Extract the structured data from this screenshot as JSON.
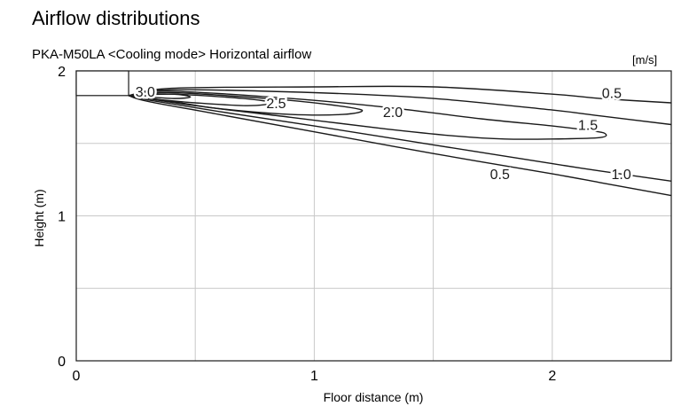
{
  "chart_data": {
    "type": "contour",
    "title": "Airflow distributions",
    "subtitle": "PKA-M50LA <Cooling mode> Horizontal airflow",
    "unit": "[m/s]",
    "xlabel": "Floor distance (m)",
    "ylabel": "Height (m)",
    "xlim": [
      0,
      2.5
    ],
    "ylim": [
      0,
      2
    ],
    "x_ticks": [
      "0",
      "1",
      "2"
    ],
    "y_ticks": [
      "0",
      "1",
      "2"
    ],
    "grid": true,
    "unit_box": {
      "x": [
        0,
        0.22
      ],
      "y": [
        1.83,
        2.0
      ]
    },
    "contours": [
      {
        "level": "0.5",
        "label": "0.5",
        "points": [
          [
            0.22,
            1.83
          ],
          [
            0.4,
            1.88
          ],
          [
            1.0,
            1.89
          ],
          [
            1.5,
            1.89
          ],
          [
            2.0,
            1.84
          ],
          [
            2.2,
            1.81
          ],
          [
            2.5,
            1.78
          ]
        ]
      },
      {
        "level": "0.5",
        "label": "0.5",
        "points": [
          [
            0.22,
            1.83
          ],
          [
            0.3,
            1.79
          ],
          [
            0.6,
            1.7
          ],
          [
            1.0,
            1.58
          ],
          [
            1.5,
            1.43
          ],
          [
            2.0,
            1.29
          ],
          [
            2.2,
            1.23
          ],
          [
            2.5,
            1.14
          ]
        ]
      },
      {
        "level": "1.0",
        "label": "1.0",
        "points": [
          [
            0.22,
            1.83
          ],
          [
            0.4,
            1.87
          ],
          [
            1.0,
            1.85
          ],
          [
            1.5,
            1.81
          ],
          [
            2.0,
            1.73
          ],
          [
            2.2,
            1.69
          ],
          [
            2.5,
            1.63
          ]
        ]
      },
      {
        "level": "1.0",
        "label": "1.0",
        "points": [
          [
            0.22,
            1.83
          ],
          [
            0.3,
            1.8
          ],
          [
            0.6,
            1.72
          ],
          [
            1.0,
            1.62
          ],
          [
            1.5,
            1.49
          ],
          [
            2.0,
            1.36
          ],
          [
            2.2,
            1.31
          ],
          [
            2.5,
            1.24
          ]
        ]
      },
      {
        "level": "1.5",
        "label": "1.5",
        "points": [
          [
            0.22,
            1.83
          ],
          [
            0.4,
            1.86
          ],
          [
            0.9,
            1.81
          ],
          [
            1.3,
            1.75
          ],
          [
            1.7,
            1.67
          ],
          [
            2.0,
            1.62
          ],
          [
            2.15,
            1.59
          ],
          [
            2.22,
            1.57
          ],
          [
            2.2,
            1.54
          ],
          [
            2.0,
            1.53
          ],
          [
            1.8,
            1.53
          ],
          [
            1.6,
            1.55
          ],
          [
            1.3,
            1.6
          ],
          [
            0.9,
            1.68
          ],
          [
            0.5,
            1.76
          ],
          [
            0.22,
            1.83
          ]
        ]
      },
      {
        "level": "2.0",
        "label": "2.0",
        "points": [
          [
            0.22,
            1.83
          ],
          [
            0.4,
            1.85
          ],
          [
            0.8,
            1.81
          ],
          [
            1.05,
            1.77
          ],
          [
            1.2,
            1.73
          ],
          [
            1.12,
            1.7
          ],
          [
            0.9,
            1.7
          ],
          [
            0.6,
            1.74
          ],
          [
            0.4,
            1.79
          ],
          [
            0.22,
            1.83
          ]
        ]
      },
      {
        "level": "2.5",
        "label": "2.5",
        "points": [
          [
            0.22,
            1.83
          ],
          [
            0.4,
            1.84
          ],
          [
            0.7,
            1.81
          ],
          [
            0.82,
            1.78
          ],
          [
            0.72,
            1.76
          ],
          [
            0.5,
            1.78
          ],
          [
            0.3,
            1.81
          ],
          [
            0.22,
            1.83
          ]
        ]
      },
      {
        "level": "3.0",
        "label": "3.0",
        "points": [
          [
            0.22,
            1.83
          ],
          [
            0.4,
            1.84
          ],
          [
            0.48,
            1.82
          ],
          [
            0.4,
            1.81
          ],
          [
            0.22,
            1.83
          ]
        ]
      }
    ],
    "labels": [
      {
        "text": "3.0",
        "x": 0.29,
        "y": 1.86
      },
      {
        "text": "2.5",
        "x": 0.84,
        "y": 1.78
      },
      {
        "text": "2.0",
        "x": 1.33,
        "y": 1.72
      },
      {
        "text": "1.5",
        "x": 2.15,
        "y": 1.63
      },
      {
        "text": "0.5",
        "x": 2.25,
        "y": 1.85
      },
      {
        "text": "1.0",
        "x": 2.29,
        "y": 1.29
      },
      {
        "text": "0.5",
        "x": 1.78,
        "y": 1.29
      }
    ]
  }
}
